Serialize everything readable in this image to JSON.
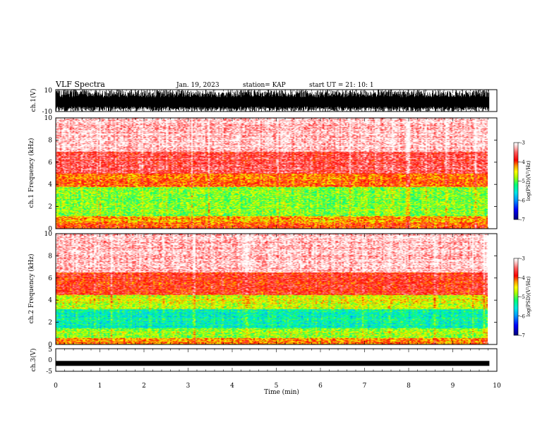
{
  "header": {
    "title": "VLF Spectra",
    "date": "Jan. 19, 2023",
    "station": "station= KAP",
    "start": "start  UT =   21: 10: 1"
  },
  "chart_data": [
    {
      "type": "line",
      "panel": "ch1-waveform",
      "ylabel": "ch.1(V)",
      "ylim": [
        -10,
        10
      ],
      "yticks": [
        "10",
        "-10"
      ],
      "x_range_min": [
        0,
        9.83
      ],
      "note_series": "dense saturating noise waveform filling the panel"
    },
    {
      "type": "heatmap",
      "panel": "ch1-spectrogram",
      "ylabel": "ch.1 Frequency (kHz)",
      "ylim": [
        0,
        10
      ],
      "yticks": [
        "0",
        "2",
        "4",
        "6",
        "8",
        "10"
      ],
      "xlim": [
        0,
        10
      ],
      "colorbar": {
        "label": "log(PSD)(V²/Hz)",
        "ticks": [
          "-3",
          "-4",
          "-5",
          "-6",
          "-7"
        ],
        "range": [
          -7,
          -3
        ]
      },
      "bands": [
        {
          "from_khz": 0,
          "to_khz": 0.6,
          "level": -4.0
        },
        {
          "from_khz": 0.6,
          "to_khz": 1.2,
          "level": -4.3
        },
        {
          "from_khz": 1.2,
          "to_khz": 3.8,
          "level": -4.9
        },
        {
          "from_khz": 3.8,
          "to_khz": 5.0,
          "level": -4.1
        },
        {
          "from_khz": 5.0,
          "to_khz": 7.0,
          "level": -3.6
        },
        {
          "from_khz": 7.0,
          "to_khz": 10.0,
          "level": -3.15
        }
      ]
    },
    {
      "type": "heatmap",
      "panel": "ch2-spectrogram",
      "ylabel": "ch.2 Frequency (kHz)",
      "ylim": [
        0,
        10
      ],
      "yticks": [
        "0",
        "2",
        "4",
        "6",
        "8",
        "10"
      ],
      "xlim": [
        0,
        10
      ],
      "colorbar": {
        "label": "log(PSD)(V²/Hz)",
        "ticks": [
          "-3",
          "-4",
          "-5",
          "-6",
          "-7"
        ],
        "range": [
          -7,
          -3
        ]
      },
      "bands": [
        {
          "from_khz": 0,
          "to_khz": 0.6,
          "level": -4.2
        },
        {
          "from_khz": 0.6,
          "to_khz": 1.5,
          "level": -4.8
        },
        {
          "from_khz": 1.5,
          "to_khz": 3.2,
          "level": -5.4
        },
        {
          "from_khz": 3.2,
          "to_khz": 4.5,
          "level": -4.6
        },
        {
          "from_khz": 4.5,
          "to_khz": 6.5,
          "level": -3.8
        },
        {
          "from_khz": 6.5,
          "to_khz": 10.0,
          "level": -3.15
        }
      ]
    },
    {
      "type": "line",
      "panel": "ch3-waveform",
      "ylabel": "ch.3(V)",
      "ylim": [
        -5,
        5
      ],
      "yticks": [
        "5",
        "0",
        "-5"
      ],
      "center_value": -1.5,
      "x_range_min": [
        0,
        9.83
      ]
    }
  ],
  "xaxis": {
    "label": "Time (min)",
    "ticks": [
      "0",
      "1",
      "2",
      "3",
      "4",
      "5",
      "6",
      "7",
      "8",
      "9",
      "10"
    ],
    "xlim": [
      0,
      10
    ]
  },
  "colors": {
    "wave": "#000000",
    "frame": "#000000",
    "colormap": [
      "#000080",
      "#0000ff",
      "#00c8ff",
      "#00ff80",
      "#ffff00",
      "#ff0000",
      "#ffffff"
    ]
  }
}
